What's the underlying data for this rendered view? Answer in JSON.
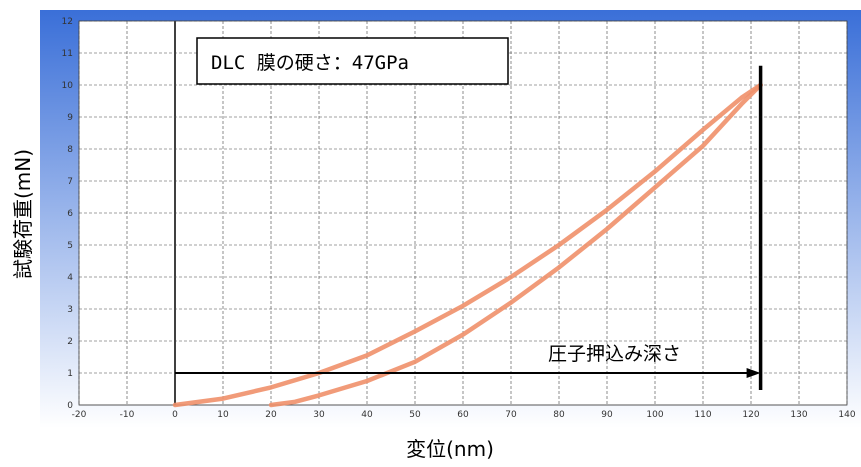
{
  "chart_data": {
    "type": "line",
    "title": "",
    "xlabel": "変位(nm)",
    "ylabel": "試験荷重(mN)",
    "xlim": [
      -20,
      140
    ],
    "ylim": [
      0,
      12
    ],
    "x_ticks": [
      -20,
      -10,
      0,
      10,
      20,
      30,
      40,
      50,
      60,
      70,
      80,
      90,
      100,
      110,
      120,
      130,
      140
    ],
    "y_ticks": [
      0,
      1,
      2,
      3,
      4,
      5,
      6,
      7,
      8,
      9,
      10,
      11,
      12
    ],
    "grid": true,
    "colors": {
      "curve": "#f0906a",
      "panel_top": "#3a6fd8",
      "panel_bottom": "#ffffff",
      "plot_bg": "#ffffff",
      "grid": "#444444"
    },
    "series": [
      {
        "x": [
          0,
          10,
          20,
          30,
          40,
          50,
          60,
          70,
          80,
          90,
          100,
          110,
          118,
          122
        ],
        "y": [
          0,
          0.2,
          0.55,
          1.0,
          1.55,
          2.3,
          3.1,
          4.0,
          5.0,
          6.1,
          7.3,
          8.6,
          9.6,
          10.0
        ]
      },
      {
        "x": [
          122,
          118,
          110,
          100,
          90,
          80,
          70,
          60,
          50,
          40,
          30,
          25,
          20
        ],
        "y": [
          10.0,
          9.4,
          8.1,
          6.8,
          5.5,
          4.3,
          3.2,
          2.2,
          1.35,
          0.75,
          0.3,
          0.1,
          0
        ]
      }
    ],
    "annotations": {
      "box_text": "DLC 膜の硬さ：47GPa",
      "arrow_text": "圧子押込み深さ",
      "arrow": {
        "x_start": 0,
        "x_end": 122,
        "y": 1
      },
      "depth_line_x": 122,
      "depth_line_y_top": 10.6
    }
  }
}
